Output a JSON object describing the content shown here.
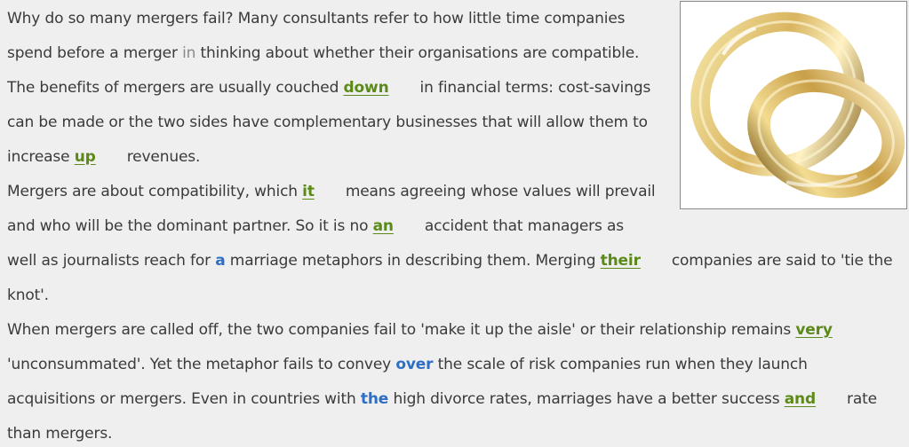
{
  "picture": {
    "icon": "gold-wedding-rings-icon",
    "colors": {
      "gold_light": "#f6e7a8",
      "gold_mid": "#d9b560",
      "gold_dark": "#8a6a24"
    }
  },
  "passage": {
    "l1": "Why do so many mergers fail? Many consultants refer to how little time companies",
    "l2a": "spend before a merger ",
    "l2b": "in",
    "l2c": " thinking about whether their organisations are compatible.",
    "l3a": "The benefits of mergers are usually couched ",
    "l3ans": "down",
    "l3b": "in financial terms: cost-savings",
    "l4": "can be made or the two sides have complementary businesses that will allow them to",
    "l5a": "increase ",
    "l5ans": "up",
    "l5b": "revenues.",
    "l6a": "Mergers are about compatibility, which ",
    "l6ans": "it",
    "l6b": "means agreeing whose values will prevail",
    "l7a": "and who will be the dominant partner. So it is no ",
    "l7ans": "an",
    "l7b": "accident that managers as",
    "l8a": "well as journalists reach for ",
    "l8ans1": "a",
    "l8b": " marriage metaphors in describing them. Merging ",
    "l8ans2": "their",
    "l8c": "companies are said to 'tie the",
    "l9": "knot'.",
    "l10a": "When mergers are called off, the two companies fail to 'make it up the aisle' or their relationship remains ",
    "l10ans": "very",
    "l11a": "'unconsummated'. Yet the metaphor fails to convey ",
    "l11ans": "over",
    "l11b": " the scale of risk companies run when they launch",
    "l12a": "acquisitions or mergers. Even in countries with ",
    "l12ans1": "the",
    "l12b": " high divorce rates, marriages have a better success ",
    "l12ans2": "and",
    "l12c": "rate",
    "l13": "than mergers."
  }
}
